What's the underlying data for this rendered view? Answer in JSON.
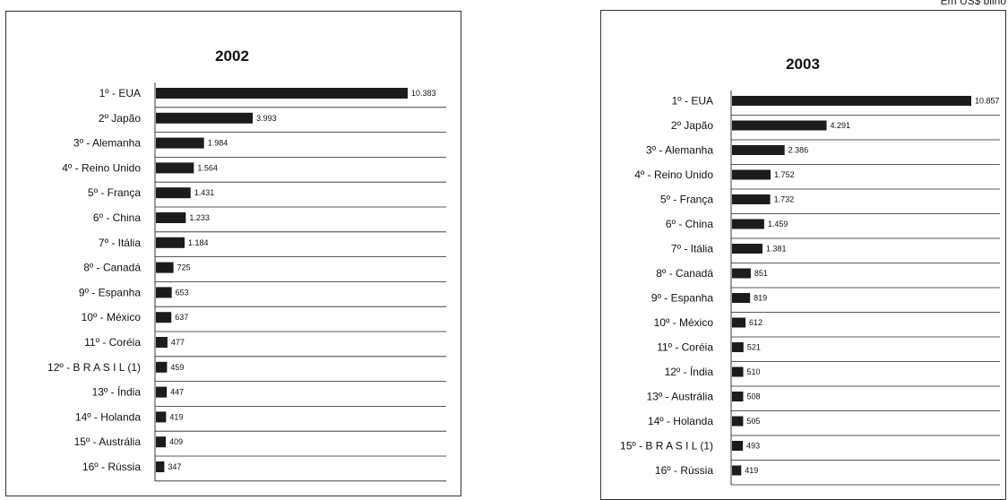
{
  "unit_note": "Em US$ bilhõ",
  "chart_data": [
    {
      "type": "bar",
      "orientation": "horizontal",
      "title": "2002",
      "categories": [
        "1º - EUA",
        "2º Japão",
        "3º - Alemanha",
        "4º - Reino Unido",
        "5º - França",
        "6º - China",
        "7º - Itália",
        "8º - Canadá",
        "9º - Espanha",
        "10º - México",
        "11º - Coréia",
        "12º - B R A S I L (1)",
        "13º - Índia",
        "14º - Holanda",
        "15º - Austrália",
        "16º - Rússia"
      ],
      "values": [
        10383,
        3993,
        1984,
        1564,
        1431,
        1233,
        1184,
        725,
        653,
        637,
        477,
        459,
        447,
        419,
        409,
        347
      ],
      "value_labels": [
        "10.383",
        "3.993",
        "1.984",
        "1.564",
        "1.431",
        "1.233",
        "1.184",
        "725",
        "653",
        "637",
        "477",
        "459",
        "447",
        "419",
        "409",
        "347"
      ],
      "grid": true
    },
    {
      "type": "bar",
      "orientation": "horizontal",
      "title": "2003",
      "categories": [
        "1º - EUA",
        "2º Japão",
        "3º - Alemanha",
        "4º - Reino Unido",
        "5º - França",
        "6º - China",
        "7º - Itália",
        "8º - Canadá",
        "9º - Espanha",
        "10º - México",
        "11º - Coréia",
        "12º - Índia",
        "13º - Austrália",
        "14º - Holanda",
        "15º - B R A S I L (1)",
        "16º - Rússia"
      ],
      "values": [
        10857,
        4291,
        2386,
        1752,
        1732,
        1459,
        1381,
        851,
        819,
        612,
        521,
        510,
        508,
        505,
        493,
        419
      ],
      "value_labels": [
        "10.857",
        "4.291",
        "2.386",
        "1.752",
        "1.732",
        "1.459",
        "1.381",
        "851",
        "819",
        "612",
        "521",
        "510",
        "508",
        "505",
        "493",
        "419"
      ],
      "grid": true
    }
  ]
}
